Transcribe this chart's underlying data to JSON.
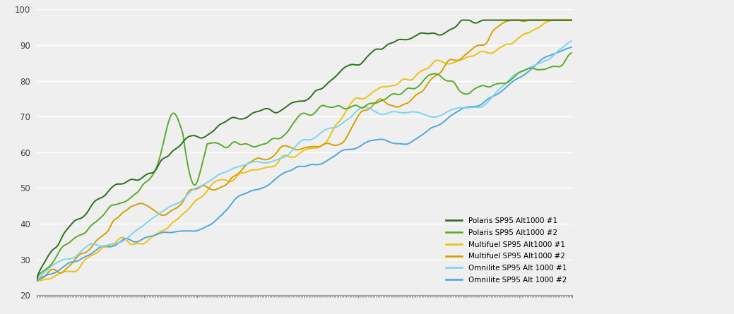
{
  "ylim": [
    20,
    100
  ],
  "yticks": [
    20,
    30,
    40,
    50,
    60,
    70,
    80,
    90,
    100
  ],
  "colors": {
    "polaris1": "#2d6e1e",
    "polaris2": "#5aaa28",
    "multifuel1": "#f0c010",
    "multifuel2": "#d4a000",
    "omnilite1": "#7dd4f0",
    "omnilite2": "#50a8d8"
  },
  "legend_labels": [
    "Polaris SP95 Alt1000 #1",
    "Polaris SP95 Alt1000 #2",
    "Multifuel SP95 Alt1000 #1",
    "Multifuel SP95 Alt1000 #2",
    "Omnilite SP95 Alt 1000 #1",
    "Omnilite SP95 Alt 1000 #2"
  ],
  "background_color": "#efefef",
  "grid_color": "#ffffff",
  "linewidth": 1.4
}
